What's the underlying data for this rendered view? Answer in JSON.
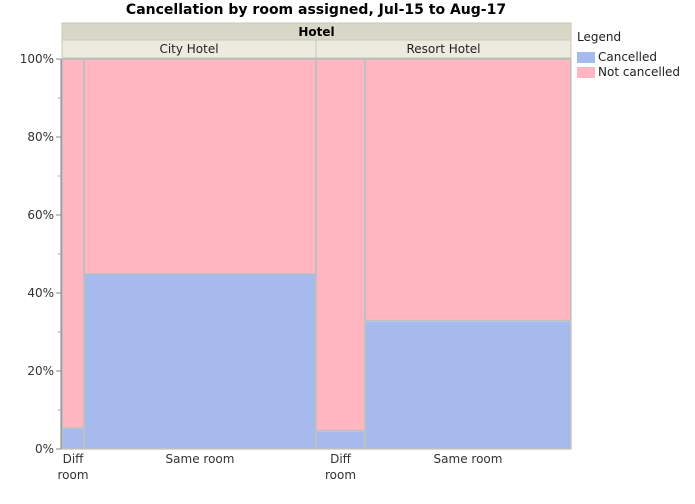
{
  "chart_data": {
    "type": "mosaic",
    "title": "Cancellation by room assigned, Jul-15 to Aug-17",
    "group_header": "Hotel",
    "groups": [
      {
        "name": "City Hotel",
        "categories": [
          {
            "label": "Diff\nroom",
            "cancelled": 5.5,
            "not_cancelled": 94.5
          },
          {
            "label": "Same room",
            "cancelled": 45.0,
            "not_cancelled": 55.0
          }
        ]
      },
      {
        "name": "Resort Hotel",
        "categories": [
          {
            "label": "Diff\nroom",
            "cancelled": 4.8,
            "not_cancelled": 95.2
          },
          {
            "label": "Same room",
            "cancelled": 33.0,
            "not_cancelled": 67.0
          }
        ]
      }
    ],
    "yticks": [
      "0%",
      "20%",
      "40%",
      "60%",
      "80%",
      "100%"
    ],
    "ylim": [
      0,
      100
    ],
    "legend": {
      "title": "Legend",
      "position": "right",
      "items": [
        {
          "name": "Cancelled",
          "color": "#a6baed"
        },
        {
          "name": "Not cancelled",
          "color": "#ffb6c1"
        }
      ]
    },
    "grid": false
  }
}
